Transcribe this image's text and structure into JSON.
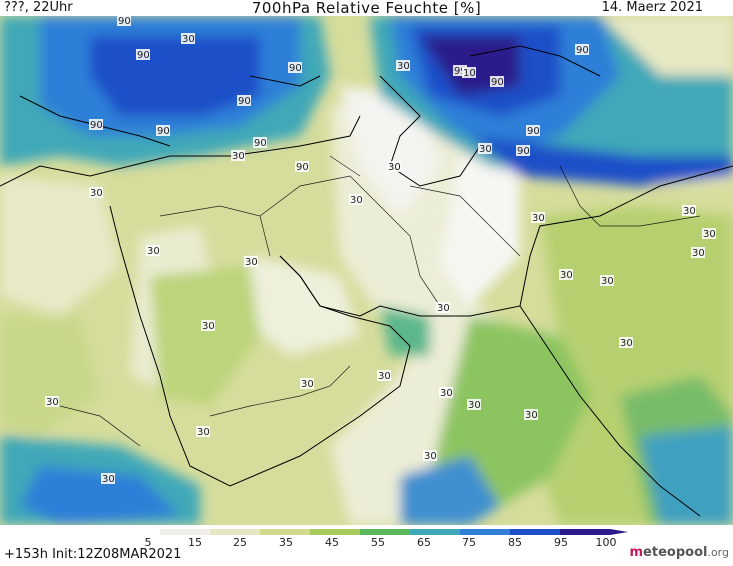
{
  "header": {
    "left": "???, 22Uhr",
    "title": "700hPa Relative Feuchte [%]",
    "date": "14. Maerz 2021"
  },
  "map_labels": [
    "90",
    "90",
    "90",
    "90",
    "90",
    "90",
    "90",
    "90",
    "99",
    "10",
    "90",
    "90",
    "90",
    "90",
    "30",
    "30",
    "30",
    "30",
    "30",
    "30",
    "30",
    "30",
    "30",
    "30",
    "30",
    "30",
    "30",
    "30",
    "30",
    "30",
    "30",
    "30",
    "30",
    "30",
    "30",
    "30",
    "30",
    "30",
    "30",
    "30",
    "30"
  ],
  "legend": {
    "ticks": [
      "5",
      "15",
      "25",
      "35",
      "45",
      "55",
      "65",
      "75",
      "85",
      "95",
      "100"
    ],
    "colors": [
      "#ffffff",
      "#f0f0e8",
      "#e6e6c2",
      "#d2da8e",
      "#a8cc5c",
      "#5cb85c",
      "#3fa8b8",
      "#2f7fd8",
      "#1f4fc8",
      "#2a1a8a"
    ]
  },
  "footer": {
    "init": "+153h  Init:12Z08MAR2021",
    "logo_m": "m",
    "logo_rest": "eteopool",
    "logo_tld": ".org"
  }
}
